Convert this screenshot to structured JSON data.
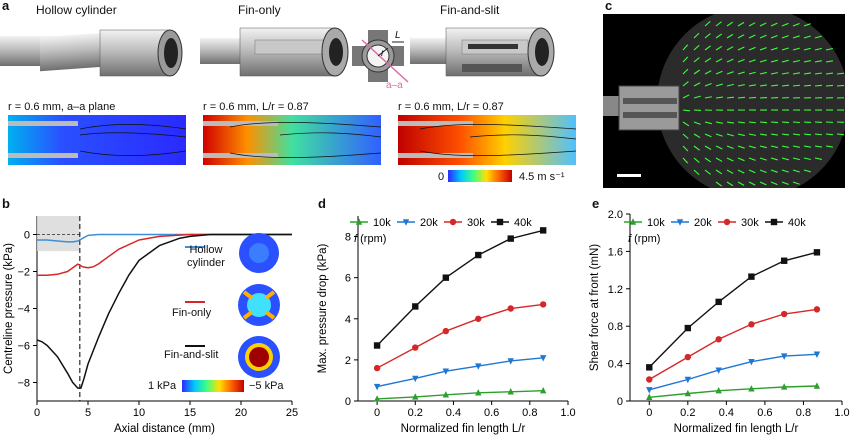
{
  "panel_a": {
    "label": "a",
    "titles": [
      "Hollow cylinder",
      "Fin-only",
      "Fin-and-slit"
    ],
    "captions": [
      "r = 0.6 mm, a–a plane",
      "r = 0.6 mm, L/r = 0.87",
      "r = 0.6 mm, L/r = 0.87"
    ],
    "section_labels": {
      "r": "r",
      "L": "L",
      "aa": "a–a"
    },
    "colorbar": {
      "min": "0",
      "max": "4.5 m s⁻¹",
      "stops": [
        "#2a2aff",
        "#00c8ff",
        "#40ff80",
        "#ffe000",
        "#ff6000",
        "#c00000"
      ]
    }
  },
  "panel_b": {
    "label": "b",
    "legend": [
      "Hollow cylinder",
      "Fin-only",
      "Fin-and-slit"
    ],
    "colorbar": {
      "left": "1 kPa",
      "right": "−5 kPa"
    },
    "colors": [
      "#3b8fd9",
      "#d62728",
      "#111111"
    ]
  },
  "panel_c": {
    "label": "c"
  },
  "panel_d": {
    "label": "d",
    "legend_title": "f (rpm)",
    "series_names": [
      "10k",
      "20k",
      "30k",
      "40k"
    ]
  },
  "panel_e": {
    "label": "e",
    "legend_title": "f (rpm)",
    "series_names": [
      "10k",
      "20k",
      "30k",
      "40k"
    ]
  },
  "chart_data": [
    {
      "type": "line",
      "panel": "b",
      "xlabel": "Axial distance (mm)",
      "ylabel": "Centreline pressure (kPa)",
      "xlim": [
        0,
        25
      ],
      "ylim": [
        -9,
        1
      ],
      "xticks": [
        0,
        5,
        10,
        15,
        20,
        25
      ],
      "yticks": [
        0,
        -2,
        -4,
        -6,
        -8
      ],
      "series": [
        {
          "name": "Hollow cylinder",
          "x": [
            0,
            1,
            2,
            3,
            3.5,
            4,
            4.5,
            5,
            6,
            8,
            10,
            15,
            25
          ],
          "values": [
            -0.3,
            -0.3,
            -0.35,
            -0.4,
            -0.4,
            -0.35,
            -0.2,
            -0.05,
            0,
            0,
            0,
            0,
            0
          ]
        },
        {
          "name": "Fin-only",
          "x": [
            0,
            1,
            2,
            3,
            4,
            4.5,
            5,
            5.5,
            6,
            7,
            8,
            10,
            12,
            15,
            17,
            25
          ],
          "values": [
            -2.2,
            -2.2,
            -2.15,
            -2.0,
            -1.6,
            -1.75,
            -1.8,
            -1.75,
            -1.6,
            -1.2,
            -0.8,
            -0.3,
            -0.1,
            0,
            0,
            0
          ]
        },
        {
          "name": "Fin-and-slit",
          "x": [
            0,
            0.5,
            1,
            2,
            3,
            3.5,
            4,
            4.3,
            4.6,
            5,
            6,
            7,
            8,
            9,
            10,
            12,
            14,
            15,
            17,
            25
          ],
          "values": [
            -5.7,
            -5.8,
            -6.0,
            -6.6,
            -7.5,
            -8.0,
            -8.3,
            -8.3,
            -7.8,
            -7.0,
            -5.6,
            -4.3,
            -3.2,
            -2.2,
            -1.4,
            -0.6,
            -0.2,
            -0.1,
            0,
            0
          ]
        }
      ]
    },
    {
      "type": "line",
      "panel": "d",
      "xlabel": "Normalized fin length L/r",
      "ylabel": "Max. pressure drop (kPa)",
      "xlim": [
        -0.1,
        1.0
      ],
      "ylim": [
        0,
        9
      ],
      "xticks": [
        0,
        0.2,
        0.4,
        0.6,
        0.8,
        1.0
      ],
      "yticks": [
        0,
        2,
        4,
        6,
        8
      ],
      "x": [
        0,
        0.2,
        0.36,
        0.53,
        0.7,
        0.87
      ],
      "series": [
        {
          "name": "10k",
          "color": "#2ca02c",
          "marker": "triangle-up",
          "values": [
            0.1,
            0.2,
            0.3,
            0.4,
            0.45,
            0.5
          ]
        },
        {
          "name": "20k",
          "color": "#1f77d4",
          "marker": "triangle-down",
          "values": [
            0.7,
            1.1,
            1.45,
            1.7,
            1.95,
            2.1
          ]
        },
        {
          "name": "30k",
          "color": "#d62728",
          "marker": "circle",
          "values": [
            1.6,
            2.6,
            3.4,
            4.0,
            4.5,
            4.7
          ]
        },
        {
          "name": "40k",
          "color": "#111111",
          "marker": "square",
          "values": [
            2.7,
            4.6,
            6.0,
            7.1,
            7.9,
            8.3
          ]
        }
      ]
    },
    {
      "type": "line",
      "panel": "e",
      "xlabel": "Normalized fin length L/r",
      "ylabel": "Shear force at front (mN)",
      "xlim": [
        -0.1,
        1.0
      ],
      "ylim": [
        0,
        2.0
      ],
      "xticks": [
        0,
        0.2,
        0.4,
        0.6,
        0.8,
        1.0
      ],
      "yticks": [
        0,
        0.4,
        0.8,
        1.2,
        1.6,
        2.0
      ],
      "x": [
        0,
        0.2,
        0.36,
        0.53,
        0.7,
        0.87
      ],
      "series": [
        {
          "name": "10k",
          "color": "#2ca02c",
          "marker": "triangle-up",
          "values": [
            0.04,
            0.08,
            0.11,
            0.13,
            0.15,
            0.16
          ]
        },
        {
          "name": "20k",
          "color": "#1f77d4",
          "marker": "triangle-down",
          "values": [
            0.12,
            0.23,
            0.33,
            0.42,
            0.48,
            0.5
          ]
        },
        {
          "name": "30k",
          "color": "#d62728",
          "marker": "circle",
          "values": [
            0.23,
            0.47,
            0.66,
            0.82,
            0.93,
            0.98
          ]
        },
        {
          "name": "40k",
          "color": "#111111",
          "marker": "square",
          "values": [
            0.36,
            0.78,
            1.06,
            1.33,
            1.5,
            1.59
          ]
        }
      ]
    }
  ]
}
